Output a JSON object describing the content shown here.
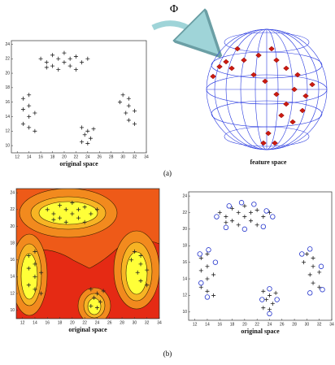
{
  "figure": {
    "phi": "Φ",
    "label_a": "(a)",
    "label_b": "(b)",
    "feature_space": "feature space"
  },
  "chart_data": [
    {
      "type": "scatter",
      "xlabel": "original space",
      "x": [
        16,
        17,
        18,
        18,
        19,
        20,
        20,
        21,
        21,
        22,
        23,
        22,
        19,
        17,
        24,
        13,
        14,
        14,
        13,
        15,
        14,
        13,
        14,
        15,
        23,
        24,
        25,
        23.5,
        24.5,
        23,
        24,
        30,
        31,
        29.5,
        31,
        30.5,
        32,
        31,
        32
      ],
      "y": [
        22,
        21.5,
        22.5,
        21,
        22,
        21.5,
        22.8,
        22,
        21,
        22.3,
        21.5,
        20.5,
        20.5,
        20.8,
        22,
        16.5,
        17,
        15.5,
        15,
        14.5,
        14,
        13,
        12.5,
        12,
        12.5,
        12,
        12.3,
        11.5,
        11,
        10.5,
        10.3,
        17,
        16.5,
        16,
        15.5,
        14.5,
        14.8,
        13.5,
        13
      ],
      "xlim": [
        11,
        34
      ],
      "ylim": [
        9,
        24.5
      ],
      "xticks": [
        12,
        14,
        16,
        18,
        20,
        22,
        24,
        26,
        28,
        30,
        32,
        34
      ],
      "yticks": [
        10,
        12,
        14,
        16,
        18,
        20,
        22,
        24
      ],
      "color": "#222222"
    },
    {
      "type": "contour",
      "xlabel": "original space",
      "xlim": [
        11,
        34
      ],
      "ylim": [
        9,
        24.5
      ],
      "xticks": [
        12,
        14,
        16,
        18,
        20,
        22,
        24,
        26,
        28,
        30,
        32,
        34
      ],
      "yticks": [
        10,
        12,
        14,
        16,
        18,
        20,
        22,
        24
      ],
      "color": "#222222"
    },
    {
      "type": "svm",
      "xlabel": "original space",
      "xlim": [
        11,
        34
      ],
      "ylim": [
        9,
        24.5
      ],
      "xticks": [
        12,
        14,
        16,
        18,
        20,
        22,
        24,
        26,
        28,
        30,
        32,
        34
      ],
      "yticks": [
        10,
        12,
        14,
        16,
        18,
        20,
        22,
        24
      ],
      "color": "#222222",
      "support_vectors": {
        "color": "#2233cc",
        "x": [
          15.5,
          17.5,
          19.5,
          21.5,
          23.5,
          24.5,
          23,
          20,
          17,
          12.8,
          14.2,
          15.3,
          13,
          14,
          22.8,
          24,
          25.2,
          24,
          29.2,
          30.5,
          32.3,
          32.5,
          30.5
        ],
        "y": [
          21.5,
          22.8,
          23.2,
          23,
          22.2,
          21.5,
          20.3,
          20,
          20.2,
          17,
          17.5,
          16,
          13.5,
          11.8,
          11.5,
          12.8,
          11.5,
          9.8,
          17,
          17.6,
          15.5,
          12.7,
          12.3
        ]
      }
    }
  ]
}
